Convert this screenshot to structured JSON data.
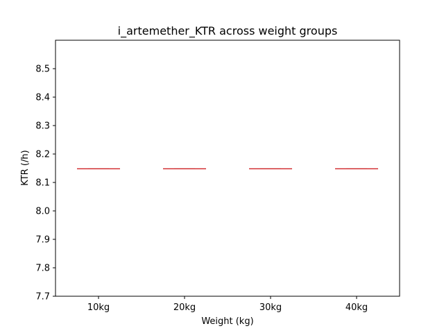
{
  "chart_data": {
    "type": "box",
    "title": "i_artemether_KTR across weight groups",
    "xlabel": "Weight (kg)",
    "ylabel": "KTR (/h)",
    "categories": [
      "10kg",
      "20kg",
      "30kg",
      "40kg"
    ],
    "values": [
      8.148,
      8.148,
      8.148,
      8.148
    ],
    "ylim": [
      7.7,
      8.6
    ],
    "yticks": [
      7.7,
      7.8,
      7.9,
      8.0,
      8.1,
      8.2,
      8.3,
      8.4,
      8.5
    ],
    "ytick_labels": [
      "7.7",
      "7.8",
      "7.9",
      "8.0",
      "8.1",
      "8.2",
      "8.3",
      "8.4",
      "8.5"
    ],
    "grid": false,
    "colors": {
      "median": "#d62728",
      "box": "#1f4e9c",
      "frame": "#000000"
    }
  }
}
